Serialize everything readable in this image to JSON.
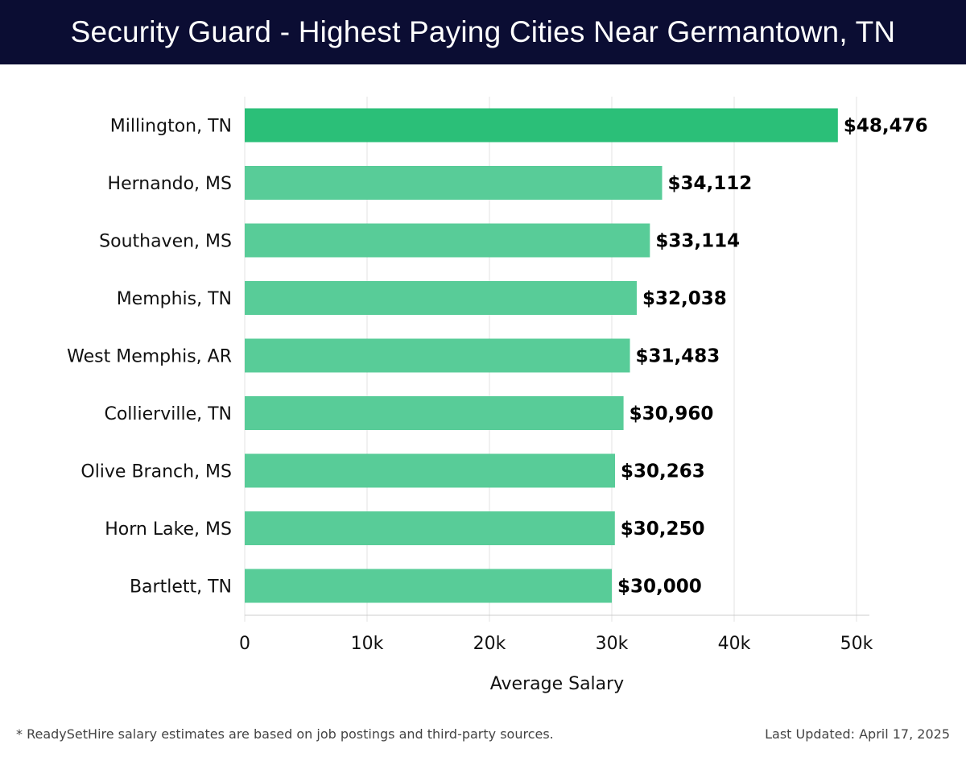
{
  "header": {
    "title": "Security Guard - Highest Paying Cities Near Germantown, TN"
  },
  "footer": {
    "note": "* ReadySetHire salary estimates are based on job postings and third-party sources.",
    "updated": "Last Updated: April 17, 2025"
  },
  "colors": {
    "header_bg": "#0b0d33",
    "top_bar": "#2bbf78",
    "bar": "#58cc98",
    "grid": "#e3e3e3"
  },
  "chart_data": {
    "type": "bar",
    "orientation": "horizontal",
    "categories": [
      "Millington, TN",
      "Hernando, MS",
      "Southaven, MS",
      "Memphis, TN",
      "West Memphis, AR",
      "Collierville, TN",
      "Olive Branch, MS",
      "Horn Lake, MS",
      "Bartlett, TN"
    ],
    "values": [
      48476,
      34112,
      33114,
      32038,
      31483,
      30960,
      30263,
      30250,
      30000
    ],
    "value_labels": [
      "$48,476",
      "$34,112",
      "$33,114",
      "$32,038",
      "$31,483",
      "$30,960",
      "$30,263",
      "$30,250",
      "$30,000"
    ],
    "xlabel": "Average Salary",
    "xlim": [
      0,
      50000
    ],
    "ticks": [
      0,
      10000,
      20000,
      30000,
      40000,
      50000
    ],
    "tick_labels": [
      "0",
      "10k",
      "20k",
      "30k",
      "40k",
      "50k"
    ],
    "grid": true,
    "highlight_index": 0
  }
}
